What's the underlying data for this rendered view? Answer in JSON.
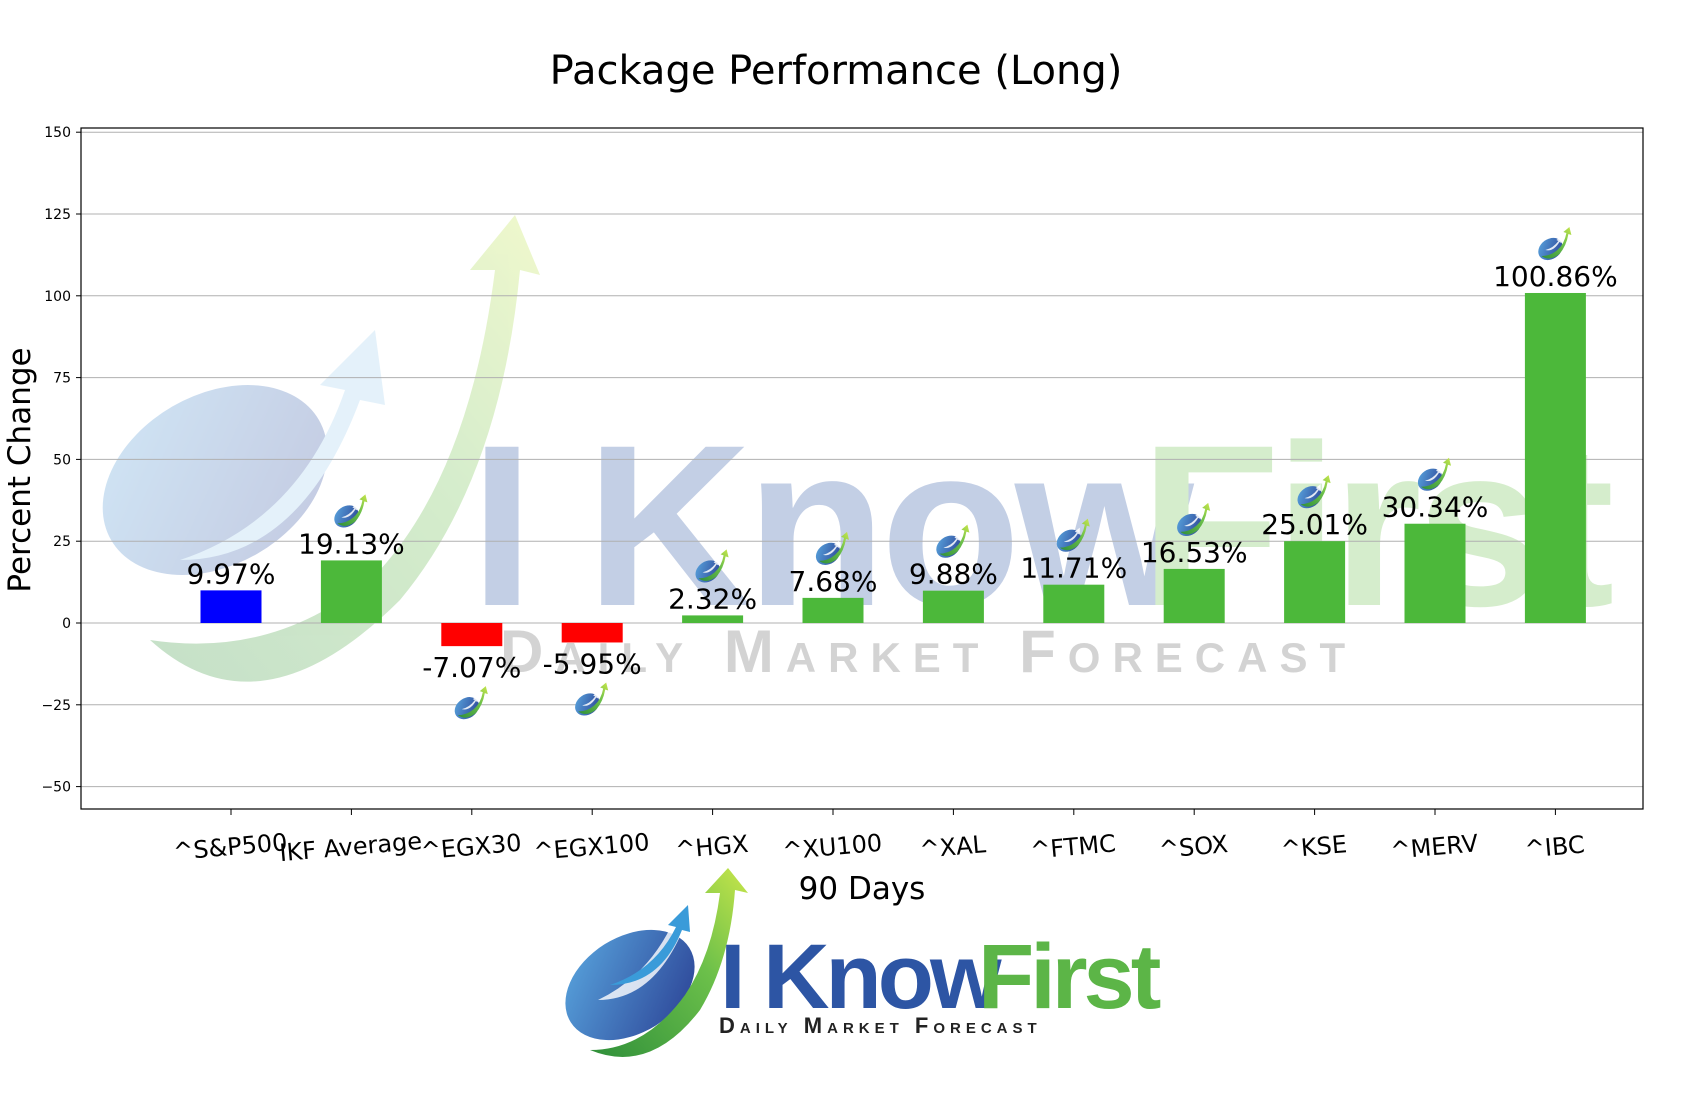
{
  "chart_data": {
    "type": "bar",
    "title": "Package Performance (Long)",
    "xlabel": "90 Days",
    "ylabel": "Percent Change",
    "ylim": [
      -57,
      151
    ],
    "yticks": [
      150,
      125,
      100,
      75,
      50,
      25,
      0,
      -25,
      -50
    ],
    "ytick_labels": [
      "150",
      "125",
      "100",
      "75",
      "50",
      "25",
      "0",
      "−25",
      "−50"
    ],
    "grid": "horizontal",
    "categories": [
      "^S&P500",
      "IKF Average",
      "^EGX30",
      "^EGX100",
      "^HGX",
      "^XU100",
      "^XAL",
      "^FTMC",
      "^SOX",
      "^KSE",
      "^MERV",
      "^IBC"
    ],
    "values": [
      9.97,
      19.13,
      -7.07,
      -5.95,
      2.32,
      7.68,
      9.88,
      11.71,
      16.53,
      25.01,
      30.34,
      100.86
    ],
    "value_labels": [
      "9.97%",
      "19.13%",
      "-7.07%",
      "-5.95%",
      "2.32%",
      "7.68%",
      "9.88%",
      "11.71%",
      "16.53%",
      "25.01%",
      "30.34%",
      "100.86%"
    ],
    "colors": {
      "benchmark": "#0000ff",
      "positive": "#4cb83a",
      "negative": "#ff0000",
      "grid": "#b0b0b0"
    }
  },
  "watermark": {
    "brand_primary": "I Know",
    "brand_secondary": "First",
    "tagline": "Daily Market Forecast"
  },
  "logo": {
    "brand_primary": "I Know",
    "brand_secondary": "First",
    "tagline": "Daily Market Forecast",
    "color_primary": "#2d55a4",
    "color_secondary": "#5cb547"
  },
  "icons": {
    "marker": "ikf-logo-icon"
  }
}
